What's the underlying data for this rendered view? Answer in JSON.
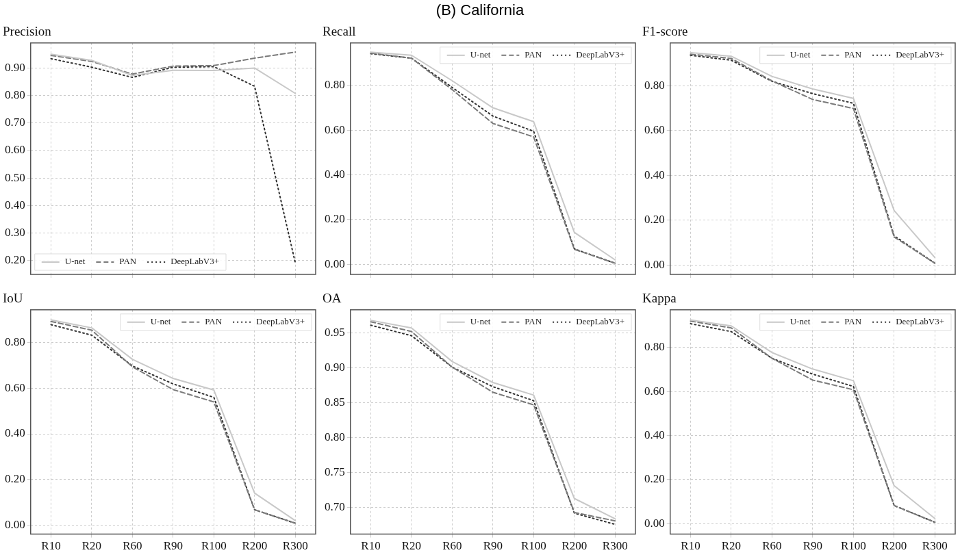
{
  "chart_data": [
    {
      "type": "line",
      "title": "Precision",
      "annotations": [
        "(B) California"
      ],
      "categories": [
        null,
        null,
        null,
        null,
        null,
        null,
        null
      ],
      "ylim": [
        0.15,
        0.99
      ],
      "yticks": [
        {
          "value": 0.2,
          "label": "0.20"
        },
        {
          "value": 0.3,
          "label": "0.30"
        },
        {
          "value": 0.4,
          "label": "0.40"
        },
        {
          "value": 0.5,
          "label": "0.50"
        },
        {
          "value": 0.6,
          "label": "0.60"
        },
        {
          "value": 0.7,
          "label": "0.70"
        },
        {
          "value": 0.8,
          "label": "0.80"
        },
        {
          "value": 0.9,
          "label": "0.90"
        }
      ],
      "grid": true,
      "legend": "bottom left",
      "tick_labels": "y",
      "marker": "none",
      "series": [
        {
          "name": "U-net",
          "color": "#c8c8c8",
          "line_style": "solid",
          "values": [
            0.949,
            0.927,
            0.872,
            0.891,
            0.89,
            0.899,
            0.807
          ]
        },
        {
          "name": "PAN",
          "color": "#7a7a7a",
          "line_style": "dashed",
          "values": [
            0.945,
            0.923,
            0.877,
            0.906,
            0.908,
            0.935,
            0.957
          ]
        },
        {
          "name": "DeepLabV3+",
          "color": "#333333",
          "line_style": "dotted",
          "values": [
            0.933,
            0.902,
            0.865,
            0.902,
            0.904,
            0.833,
            0.192
          ]
        }
      ]
    },
    {
      "type": "line",
      "title": "Recall",
      "categories": [
        null,
        null,
        null,
        null,
        null,
        null,
        null
      ],
      "ylim": [
        -0.045,
        0.99
      ],
      "yticks": [
        {
          "value": 0,
          "label": "0.00"
        },
        {
          "value": 0.2,
          "label": "0.20"
        },
        {
          "value": 0.4,
          "label": "0.40"
        },
        {
          "value": 0.6,
          "label": "0.60"
        },
        {
          "value": 0.8,
          "label": "0.80"
        }
      ],
      "grid": true,
      "legend": "top right",
      "tick_labels": "y",
      "marker": "none",
      "series": [
        {
          "name": "U-net",
          "color": "#c8c8c8",
          "line_style": "solid",
          "values": [
            0.949,
            0.935,
            0.821,
            0.7,
            0.638,
            0.143,
            0.02
          ]
        },
        {
          "name": "PAN",
          "color": "#7a7a7a",
          "line_style": "dashed",
          "values": [
            0.945,
            0.922,
            0.781,
            0.63,
            0.57,
            0.067,
            0.005
          ]
        },
        {
          "name": "DeepLabV3+",
          "color": "#333333",
          "line_style": "dotted",
          "values": [
            0.942,
            0.922,
            0.791,
            0.663,
            0.595,
            0.069,
            0.005
          ]
        }
      ]
    },
    {
      "type": "line",
      "title": "F1-score",
      "categories": [
        null,
        null,
        null,
        null,
        null,
        null,
        null
      ],
      "ylim": [
        -0.042,
        0.99
      ],
      "yticks": [
        {
          "value": 0,
          "label": "0.00"
        },
        {
          "value": 0.2,
          "label": "0.20"
        },
        {
          "value": 0.4,
          "label": "0.40"
        },
        {
          "value": 0.6,
          "label": "0.60"
        },
        {
          "value": 0.8,
          "label": "0.80"
        }
      ],
      "grid": true,
      "legend": "top right",
      "tick_labels": "y",
      "marker": "none",
      "series": [
        {
          "name": "U-net",
          "color": "#c8c8c8",
          "line_style": "solid",
          "values": [
            0.947,
            0.931,
            0.841,
            0.785,
            0.743,
            0.243,
            0.033
          ]
        },
        {
          "name": "PAN",
          "color": "#7a7a7a",
          "line_style": "dashed",
          "values": [
            0.94,
            0.921,
            0.821,
            0.738,
            0.698,
            0.125,
            0.008
          ]
        },
        {
          "name": "DeepLabV3+",
          "color": "#333333",
          "line_style": "dotted",
          "values": [
            0.935,
            0.913,
            0.819,
            0.764,
            0.721,
            0.13,
            0.008
          ]
        }
      ]
    },
    {
      "type": "line",
      "title": "IoU",
      "categories": [
        "R10",
        "R20",
        "R60",
        "R90",
        "R100",
        "R200",
        "R300"
      ],
      "ylim": [
        -0.04,
        0.944
      ],
      "yticks": [
        {
          "value": 0,
          "label": "0.00"
        },
        {
          "value": 0.2,
          "label": "0.20"
        },
        {
          "value": 0.4,
          "label": "0.40"
        },
        {
          "value": 0.6,
          "label": "0.60"
        },
        {
          "value": 0.8,
          "label": "0.80"
        }
      ],
      "grid": true,
      "legend": "top right",
      "marker": "none",
      "series": [
        {
          "name": "U-net",
          "color": "#c8c8c8",
          "line_style": "solid",
          "values": [
            0.9,
            0.865,
            0.727,
            0.643,
            0.592,
            0.14,
            0.019
          ]
        },
        {
          "name": "PAN",
          "color": "#7a7a7a",
          "line_style": "dashed",
          "values": [
            0.893,
            0.855,
            0.694,
            0.594,
            0.54,
            0.067,
            0.008
          ]
        },
        {
          "name": "DeepLabV3+",
          "color": "#333333",
          "line_style": "dotted",
          "values": [
            0.879,
            0.833,
            0.698,
            0.619,
            0.56,
            0.067,
            0.008
          ]
        }
      ]
    },
    {
      "type": "line",
      "title": "OA",
      "categories": [
        "R10",
        "R20",
        "R60",
        "R90",
        "R100",
        "R200",
        "R300"
      ],
      "ylim": [
        0.662,
        0.983
      ],
      "yticks": [
        {
          "value": 0.7,
          "label": "0.70"
        },
        {
          "value": 0.75,
          "label": "0.75"
        },
        {
          "value": 0.8,
          "label": "0.80"
        },
        {
          "value": 0.85,
          "label": "0.85"
        },
        {
          "value": 0.9,
          "label": "0.90"
        },
        {
          "value": 0.95,
          "label": "0.95"
        }
      ],
      "grid": true,
      "legend": "top right",
      "marker": "none",
      "series": [
        {
          "name": "U-net",
          "color": "#c8c8c8",
          "line_style": "solid",
          "values": [
            0.968,
            0.957,
            0.909,
            0.879,
            0.861,
            0.713,
            0.684
          ]
        },
        {
          "name": "PAN",
          "color": "#7a7a7a",
          "line_style": "dashed",
          "values": [
            0.966,
            0.952,
            0.901,
            0.865,
            0.847,
            0.693,
            0.681
          ]
        },
        {
          "name": "DeepLabV3+",
          "color": "#333333",
          "line_style": "dotted",
          "values": [
            0.961,
            0.946,
            0.901,
            0.873,
            0.853,
            0.692,
            0.676
          ]
        }
      ]
    },
    {
      "type": "line",
      "title": "Kappa",
      "categories": [
        "R10",
        "R20",
        "R60",
        "R90",
        "R100",
        "R200",
        "R300"
      ],
      "ylim": [
        -0.048,
        0.971
      ],
      "yticks": [
        {
          "value": 0,
          "label": "0.00"
        },
        {
          "value": 0.2,
          "label": "0.20"
        },
        {
          "value": 0.4,
          "label": "0.40"
        },
        {
          "value": 0.6,
          "label": "0.60"
        },
        {
          "value": 0.8,
          "label": "0.80"
        }
      ],
      "grid": true,
      "legend": "top right",
      "marker": "none",
      "series": [
        {
          "name": "U-net",
          "color": "#c8c8c8",
          "line_style": "solid",
          "values": [
            0.925,
            0.898,
            0.777,
            0.702,
            0.649,
            0.172,
            0.023
          ]
        },
        {
          "name": "PAN",
          "color": "#7a7a7a",
          "line_style": "dashed",
          "values": [
            0.92,
            0.889,
            0.751,
            0.652,
            0.608,
            0.082,
            0.006
          ]
        },
        {
          "name": "DeepLabV3+",
          "color": "#333333",
          "line_style": "dotted",
          "values": [
            0.908,
            0.872,
            0.751,
            0.679,
            0.623,
            0.082,
            0.006
          ]
        }
      ]
    }
  ]
}
